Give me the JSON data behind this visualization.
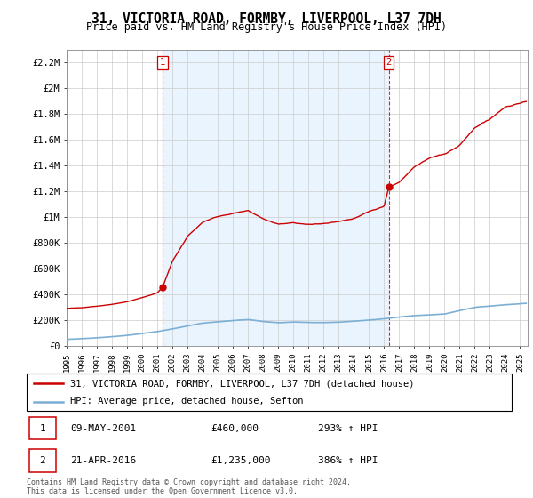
{
  "title": "31, VICTORIA ROAD, FORMBY, LIVERPOOL, L37 7DH",
  "subtitle": "Price paid vs. HM Land Registry's House Price Index (HPI)",
  "legend_line1": "31, VICTORIA ROAD, FORMBY, LIVERPOOL, L37 7DH (detached house)",
  "legend_line2": "HPI: Average price, detached house, Sefton",
  "annotation1_date": "09-MAY-2001",
  "annotation1_price": "£460,000",
  "annotation1_hpi": "293% ↑ HPI",
  "annotation2_date": "21-APR-2016",
  "annotation2_price": "£1,235,000",
  "annotation2_hpi": "386% ↑ HPI",
  "footer": "Contains HM Land Registry data © Crown copyright and database right 2024.\nThis data is licensed under the Open Government Licence v3.0.",
  "price_line_color": "#cc0000",
  "hpi_line_color": "#7bafd4",
  "annotation_color": "#cc0000",
  "shade_color": "#ddeeff",
  "background_color": "#ffffff",
  "grid_color": "#cccccc",
  "ylim": [
    0,
    2300000
  ],
  "yticks": [
    0,
    200000,
    400000,
    600000,
    800000,
    1000000,
    1200000,
    1400000,
    1600000,
    1800000,
    2000000,
    2200000
  ],
  "ytick_labels": [
    "£0",
    "£200K",
    "£400K",
    "£600K",
    "£800K",
    "£1M",
    "£1.2M",
    "£1.4M",
    "£1.6M",
    "£1.8M",
    "£2M",
    "£2.2M"
  ],
  "sale1_x": 2001.36,
  "sale1_y": 460000,
  "sale2_x": 2016.31,
  "sale2_y": 1235000,
  "xlim_start": 1995,
  "xlim_end": 2025.5
}
